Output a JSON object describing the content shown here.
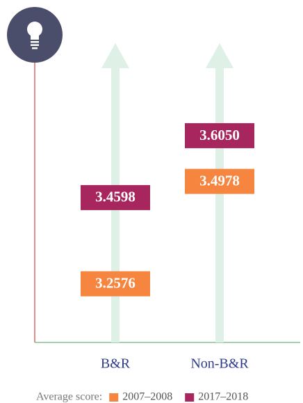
{
  "chart_data": {
    "type": "label_markers",
    "categories": [
      "B&R",
      "Non-B&R"
    ],
    "legend_title": "Average score:",
    "series": [
      {
        "name": "2007–2008",
        "color": "#f5853f",
        "values": [
          3.2576,
          3.4978
        ],
        "value_labels": [
          "3.2576",
          "3.4978"
        ]
      },
      {
        "name": "2017–2018",
        "color": "#a8265e",
        "values": [
          3.4598,
          3.605
        ],
        "value_labels": [
          "3.4598",
          "3.6050"
        ]
      }
    ],
    "ylim": [
      3.12,
      3.76
    ],
    "grid": false
  }
}
